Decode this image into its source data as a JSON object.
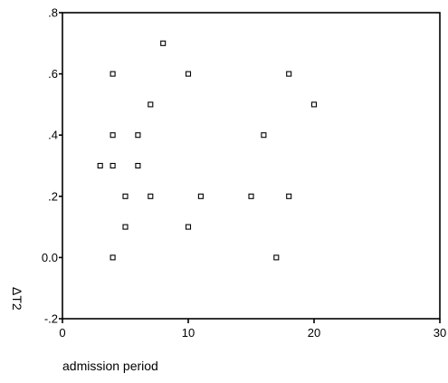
{
  "chart_data": {
    "type": "scatter",
    "title": "",
    "xlabel": "admission period",
    "ylabel": "ΔT2",
    "xlim": [
      0,
      30
    ],
    "ylim": [
      -0.2,
      0.8
    ],
    "xticks": [
      0,
      10,
      20,
      30
    ],
    "yticks": [
      -0.2,
      0.0,
      0.2,
      0.4,
      0.6,
      0.8
    ],
    "xtick_labels": [
      "0",
      "10",
      "20",
      "30"
    ],
    "ytick_labels": [
      "-.2",
      "0.0",
      ".2",
      ".4",
      ".6",
      ".8"
    ],
    "grid": false,
    "marker": "open-square",
    "points": [
      {
        "x": 3,
        "y": 0.3
      },
      {
        "x": 4,
        "y": 0.6
      },
      {
        "x": 4,
        "y": 0.4
      },
      {
        "x": 4,
        "y": 0.3
      },
      {
        "x": 4,
        "y": 0.0
      },
      {
        "x": 5,
        "y": 0.2
      },
      {
        "x": 5,
        "y": 0.1
      },
      {
        "x": 6,
        "y": 0.4
      },
      {
        "x": 6,
        "y": 0.3
      },
      {
        "x": 7,
        "y": 0.5
      },
      {
        "x": 7,
        "y": 0.2
      },
      {
        "x": 8,
        "y": 0.7
      },
      {
        "x": 10,
        "y": 0.6
      },
      {
        "x": 10,
        "y": 0.1
      },
      {
        "x": 11,
        "y": 0.2
      },
      {
        "x": 15,
        "y": 0.2
      },
      {
        "x": 16,
        "y": 0.4
      },
      {
        "x": 17,
        "y": 0.0
      },
      {
        "x": 18,
        "y": 0.6
      },
      {
        "x": 18,
        "y": 0.2
      },
      {
        "x": 20,
        "y": 0.5
      }
    ],
    "colors": {
      "axis": "#000000",
      "marker": "#000000",
      "background": "#ffffff"
    }
  }
}
